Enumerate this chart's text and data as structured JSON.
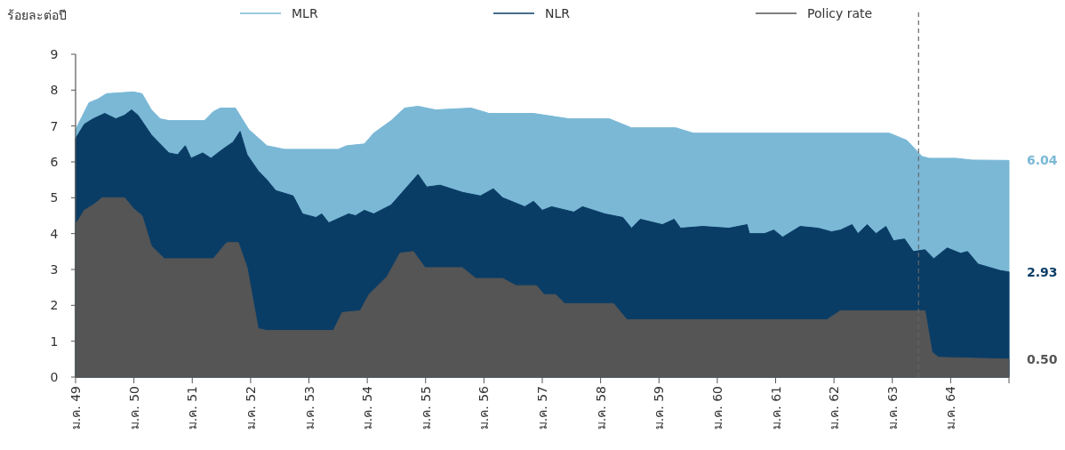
{
  "chart_data": {
    "type": "area",
    "ylabel": "ร้อยละต่อปี",
    "legend": "top",
    "grid": false,
    "xlim": [
      49,
      65
    ],
    "ylim": [
      0,
      9
    ],
    "xticks": [
      {
        "value": 49,
        "label": "ม.ค. 49"
      },
      {
        "value": 50,
        "label": "ม.ค. 50"
      },
      {
        "value": 51,
        "label": "ม.ค. 51"
      },
      {
        "value": 52,
        "label": "ม.ค. 52"
      },
      {
        "value": 53,
        "label": "ม.ค. 53"
      },
      {
        "value": 54,
        "label": "ม.ค. 54"
      },
      {
        "value": 55,
        "label": "ม.ค. 55"
      },
      {
        "value": 56,
        "label": "ม.ค. 56"
      },
      {
        "value": 57,
        "label": "ม.ค. 57"
      },
      {
        "value": 58,
        "label": "ม.ค. 58"
      },
      {
        "value": 59,
        "label": "ม.ค. 59"
      },
      {
        "value": 60,
        "label": "ม.ค. 60"
      },
      {
        "value": 61,
        "label": "ม.ค. 61"
      },
      {
        "value": 62,
        "label": "ม.ค. 62"
      },
      {
        "value": 63,
        "label": "ม.ค. 63"
      },
      {
        "value": 64,
        "label": "ม.ค. 64"
      },
      {
        "value": 65,
        "label": null
      }
    ],
    "yticks": [
      0,
      1,
      2,
      3,
      4,
      5,
      6,
      7,
      8,
      9
    ],
    "series": [
      {
        "name": "MLR",
        "color": "#7ab8d6",
        "x": [
          49,
          49.23,
          49.38,
          49.53,
          49.99,
          50.14,
          50.3,
          50.45,
          50.6,
          51.21,
          51.36,
          51.48,
          51.74,
          51.97,
          52.28,
          52.58,
          53.5,
          53.65,
          53.95,
          54.11,
          54.41,
          54.64,
          54.87,
          55.17,
          55.78,
          56.09,
          56.85,
          57.46,
          58.15,
          58.53,
          59.29,
          59.59,
          62.95,
          63.25,
          63.51,
          63.63,
          64.09,
          64.37,
          65
        ],
        "values": [
          6.9,
          7.65,
          7.75,
          7.9,
          7.95,
          7.9,
          7.45,
          7.2,
          7.15,
          7.15,
          7.4,
          7.5,
          7.5,
          6.9,
          6.45,
          6.35,
          6.35,
          6.45,
          6.5,
          6.8,
          7.15,
          7.5,
          7.55,
          7.45,
          7.5,
          7.35,
          7.35,
          7.2,
          7.2,
          6.95,
          6.95,
          6.8,
          6.8,
          6.6,
          6.15,
          6.1,
          6.1,
          6.05,
          6.04
        ]
      },
      {
        "name": "NLR",
        "color": "#0a3d66",
        "x": [
          49,
          49.15,
          49.3,
          49.5,
          49.69,
          49.84,
          49.96,
          50.07,
          50.3,
          50.6,
          50.75,
          50.88,
          50.98,
          51.18,
          51.32,
          51.52,
          51.7,
          51.82,
          51.94,
          52.13,
          52.28,
          52.43,
          52.73,
          52.89,
          53.12,
          53.22,
          53.34,
          53.68,
          53.8,
          53.95,
          54.11,
          54.41,
          54.87,
          55.02,
          55.25,
          55.63,
          55.94,
          56.16,
          56.32,
          56.7,
          56.85,
          57,
          57.16,
          57.54,
          57.69,
          58.07,
          58.38,
          58.53,
          58.68,
          59.06,
          59.26,
          59.37,
          59.75,
          60.2,
          60.51,
          60.55,
          60.81,
          60.97,
          61.12,
          61.42,
          61.73,
          61.96,
          62.11,
          62.31,
          62.41,
          62.57,
          62.72,
          62.89,
          63.02,
          63.21,
          63.36,
          63.56,
          63.71,
          63.94,
          64.17,
          64.29,
          64.47,
          64.85,
          65
        ],
        "values": [
          6.65,
          7.05,
          7.2,
          7.35,
          7.2,
          7.3,
          7.45,
          7.3,
          6.75,
          6.25,
          6.2,
          6.45,
          6.1,
          6.25,
          6.1,
          6.35,
          6.55,
          6.85,
          6.2,
          5.75,
          5.5,
          5.2,
          5.05,
          4.55,
          4.45,
          4.55,
          4.3,
          4.55,
          4.5,
          4.65,
          4.55,
          4.8,
          5.65,
          5.3,
          5.35,
          5.15,
          5.05,
          5.25,
          5,
          4.75,
          4.9,
          4.65,
          4.75,
          4.6,
          4.75,
          4.55,
          4.45,
          4.15,
          4.4,
          4.25,
          4.4,
          4.15,
          4.2,
          4.15,
          4.25,
          4,
          4,
          4.1,
          3.9,
          4.2,
          4.15,
          4.05,
          4.1,
          4.25,
          4,
          4.25,
          4,
          4.2,
          3.8,
          3.85,
          3.5,
          3.55,
          3.3,
          3.6,
          3.45,
          3.5,
          3.15,
          2.97,
          2.93
        ]
      },
      {
        "name": "Policy rate",
        "color": "#555555",
        "x": [
          49,
          49.15,
          49.3,
          49.46,
          49.84,
          49.99,
          50.14,
          50.3,
          50.52,
          51.36,
          51.59,
          51.79,
          51.94,
          52.13,
          52.28,
          53.42,
          53.57,
          53.88,
          54.03,
          54.34,
          54.56,
          54.79,
          54.99,
          55.63,
          55.86,
          56.32,
          56.55,
          56.9,
          57.03,
          57.23,
          57.38,
          58.22,
          58.45,
          61.88,
          62.11,
          63.56,
          63.68,
          63.79,
          65
        ],
        "values": [
          4.25,
          4.65,
          4.8,
          5,
          5,
          4.7,
          4.5,
          3.65,
          3.3,
          3.3,
          3.75,
          3.75,
          3.05,
          1.35,
          1.3,
          1.3,
          1.8,
          1.85,
          2.3,
          2.8,
          3.45,
          3.5,
          3.05,
          3.05,
          2.75,
          2.75,
          2.55,
          2.55,
          2.3,
          2.3,
          2.05,
          2.05,
          1.6,
          1.6,
          1.85,
          1.85,
          0.7,
          0.55,
          0.5
        ]
      }
    ],
    "ref_lines": [
      {
        "axis": "x",
        "value": 63.45,
        "color": "#666666",
        "line_style": "dashed"
      }
    ],
    "annotations": [
      "6.04",
      "2.93",
      "0.50"
    ]
  }
}
